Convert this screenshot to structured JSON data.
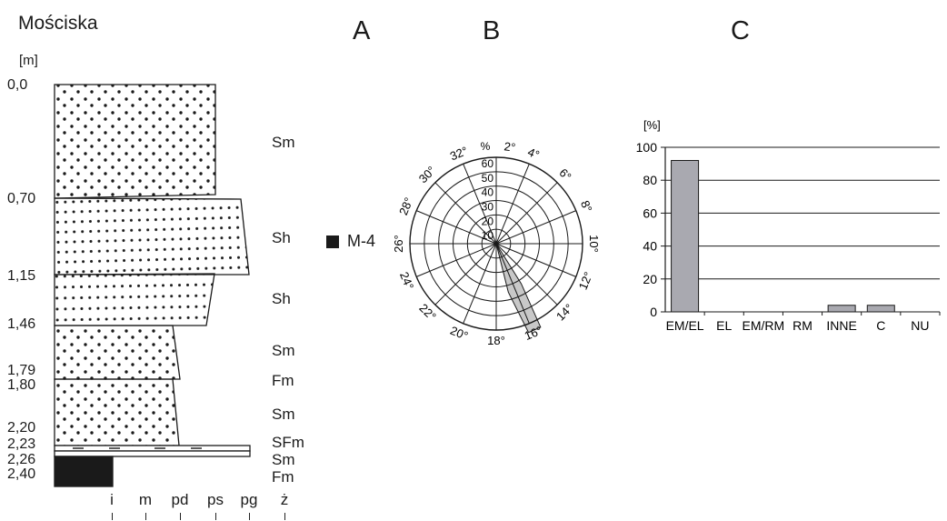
{
  "title": "Mościska",
  "panels": {
    "a": "A",
    "b": "B",
    "c": "C"
  },
  "log": {
    "unit_label": "[m]",
    "depths": [
      "0,0",
      "0,70",
      "1,15",
      "1,46",
      "1,79",
      "1,80",
      "2,20",
      "2,23",
      "2,26",
      "2,40"
    ],
    "facies": [
      "Sm",
      "Sh",
      "Sh",
      "Sm",
      "Fm",
      "Sm",
      "SFm",
      "Sm",
      "Fm"
    ],
    "grain_sizes": [
      "i",
      "m",
      "pd",
      "ps",
      "pg",
      "ż"
    ],
    "sample": "M-4"
  },
  "rose": {
    "percent_symbol": "%",
    "ring_labels": [
      "10",
      "20",
      "30",
      "40",
      "50",
      "60"
    ],
    "direction_labels": [
      "2°",
      "4°",
      "6°",
      "8°",
      "10°",
      "12°",
      "14°",
      "16°",
      "18°",
      "20°",
      "22°",
      "24°",
      "26°",
      "28°",
      "30°",
      "32°"
    ],
    "fill_color": "#c8c8c8"
  },
  "chart_data": {
    "type": "bar",
    "categories": [
      "EM/EL",
      "EL",
      "EM/RM",
      "RM",
      "INNE",
      "C",
      "NU"
    ],
    "values": [
      92,
      0,
      0,
      0,
      4,
      4,
      0
    ],
    "ylabel": "[%]",
    "ylim": [
      0,
      100
    ],
    "yticks": [
      "0",
      "20",
      "40",
      "60",
      "80",
      "100"
    ],
    "grid": true,
    "bar_color": "#a9a9b0"
  }
}
